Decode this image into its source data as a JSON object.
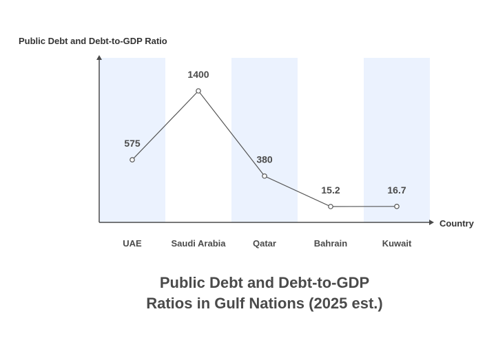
{
  "chart_data": {
    "type": "line",
    "title": [
      "Public Debt and Debt-to-GDP",
      "Ratios in Gulf Nations (2025 est.)"
    ],
    "ylabel": "Public Debt and Debt-to-GDP Ratio",
    "xlabel": "Country",
    "categories": [
      "UAE",
      "Saudi Arabia",
      "Qatar",
      "Bahrain",
      "Kuwait"
    ],
    "values": [
      575,
      1400,
      380,
      15.2,
      16.7
    ],
    "value_labels": [
      "575",
      "1400",
      "380",
      "15.2",
      "16.7"
    ],
    "grid": false,
    "band_color": "#ebf2fe",
    "line_color": "#555555",
    "axis_color": "#4a4a4a"
  }
}
